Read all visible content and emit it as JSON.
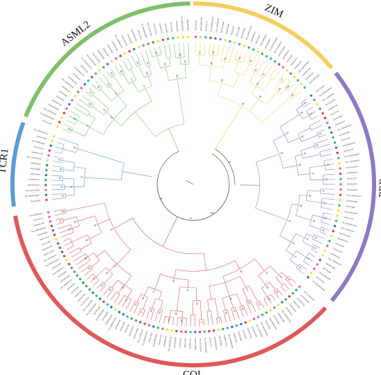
{
  "figure": {
    "type": "circular-phylogenetic-tree",
    "clades": [
      {
        "name": "ASML2",
        "color": "#7fbf6a",
        "start_deg": 292,
        "end_deg": 359,
        "leaves": 34,
        "pattern": "stair",
        "label_deg": 322
      },
      {
        "name": "ZIM",
        "color": "#f3cf60",
        "start_deg": 0,
        "end_deg": 50,
        "leaves": 26,
        "pattern": "mixed",
        "label_deg": 25
      },
      {
        "name": "PRR",
        "color": "#8f79c4",
        "start_deg": 52,
        "end_deg": 130,
        "leaves": 38,
        "pattern": "mixed",
        "label_deg": 91
      },
      {
        "name": "COL",
        "color": "#e0575a",
        "start_deg": 133,
        "end_deg": 260,
        "leaves": 70,
        "pattern": "mixed",
        "label_deg": 180
      },
      {
        "name": "TCR1",
        "color": "#5b9bd5",
        "start_deg": 263,
        "end_deg": 290,
        "leaves": 14,
        "pattern": "mixed",
        "label_deg": 277
      }
    ],
    "marker_colors": [
      "#e03c3c",
      "#2f6fd6",
      "#f3e03a",
      "#e45cbf",
      "#3ab54a",
      "#2fb5c8"
    ],
    "root_color": "#555555",
    "bootstrap_values": [
      "100",
      "99",
      "98",
      "97",
      "95",
      "93",
      "90",
      "88",
      "86",
      "84",
      "82",
      "80",
      "78",
      "76",
      "74",
      "71",
      "69",
      "66",
      "63",
      "60",
      "57",
      "54",
      "51",
      "48",
      "45",
      "42",
      "38",
      "35",
      "31",
      "27"
    ],
    "leaf_id_patterns": [
      "GhCOL1",
      "Gh_A05G2014",
      "Ghir_D12G01",
      "GarCOL23",
      "GraPRR7",
      "AtCOL2",
      "OsCOL4",
      "GhZIM12",
      "Ghir_A09G007",
      "GaASML2",
      "GhTCR1",
      "Gorai.009G1"
    ]
  }
}
